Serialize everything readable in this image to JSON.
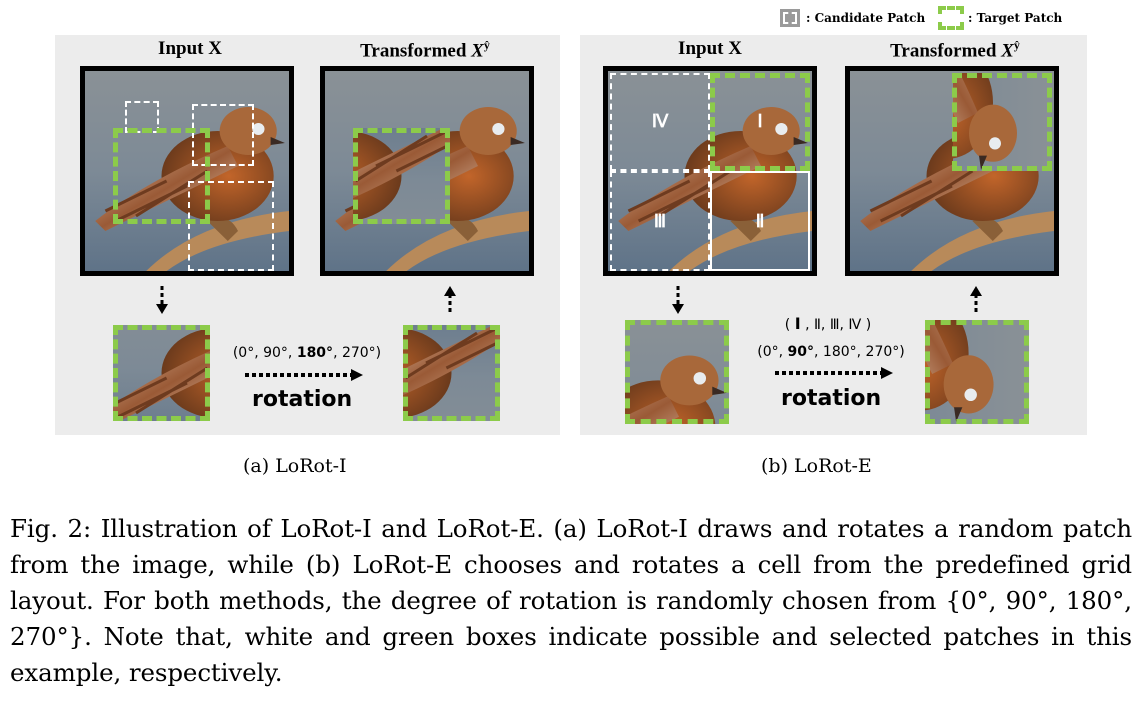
{
  "legend": {
    "candidate_label": ": Candidate Patch",
    "target_label": ": Target Patch"
  },
  "panel_a": {
    "input_title": "Input X",
    "transformed_title": "Transformed",
    "transformed_symbol": "X",
    "transformed_super": "ŷ",
    "angles_prefix": "(0°, 90°, ",
    "angles_bold": "180°",
    "angles_suffix": ", 270°)",
    "rotation": "rotation",
    "subcaption": "(a) LoRot-I"
  },
  "panel_b": {
    "input_title": "Input X",
    "transformed_title": "Transformed",
    "transformed_symbol": "X",
    "transformed_super": "ŷ",
    "cells": [
      "Ⅰ",
      "Ⅱ",
      "Ⅲ",
      "Ⅳ"
    ],
    "cells_open": "( ",
    "cells_bold": "Ⅰ",
    "cells_rest": " , Ⅱ, Ⅲ, Ⅳ )",
    "angles_prefix": "(0°, ",
    "angles_bold": "90°",
    "angles_suffix": ", 180°, 270°)",
    "rotation": "rotation",
    "subcaption": "(b) LoRot-E"
  },
  "caption": {
    "text": "Fig. 2: Illustration of LoRot-I and LoRot-E. (a) LoRot-I draws and rotates a random patch from the image, while (b) LoRot-E chooses and rotates a cell from the predefined grid layout. For both methods, the degree of rotation is randomly chosen from {0°, 90°, 180°, 270°}. Note that, white and green boxes indicate possible and selected patches in this example, respectively."
  },
  "colors": {
    "panel_bg": "#ececec",
    "target_green": "#8ccb4a",
    "candidate_gray": "#9a9a9a"
  }
}
